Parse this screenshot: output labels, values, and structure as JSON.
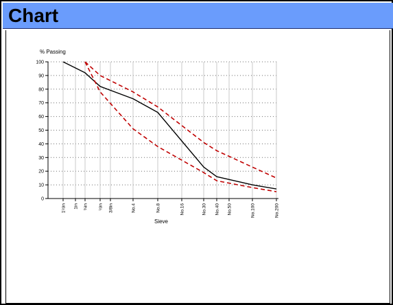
{
  "window": {
    "title": "Chart"
  },
  "colors": {
    "titlebar": "#6a9cfc",
    "gradation": "#000000",
    "limits": "#c00000"
  },
  "chart_data": {
    "type": "line",
    "title": "",
    "ylabel": "% Passing",
    "xlabel": "Sieve",
    "ylim": [
      0,
      100
    ],
    "y_ticks": [
      0,
      10,
      20,
      30,
      40,
      50,
      60,
      70,
      80,
      90,
      100
    ],
    "x_scale": "log (sieve size)",
    "sieves": [
      "1½in",
      "1in",
      "¾in",
      "½in",
      "3/8in",
      "No.4",
      "No.8",
      "No.16",
      "No.30",
      "No.40",
      "No.50",
      "No.100",
      "No.200"
    ],
    "x_ticks": [
      "1½in",
      "1in",
      "¾in",
      "½in",
      "3/8in",
      "No.4",
      "No.8",
      "No.16",
      "No.30",
      "No.40",
      "No.50",
      "No.100",
      "No.200"
    ],
    "grid": true,
    "series": [
      {
        "style": "solid",
        "color": "#000000",
        "x": [
          "1½in",
          "¾in",
          "½in",
          "No.4",
          "No.8",
          "No.30",
          "No.40",
          "No.100",
          "No.200"
        ],
        "values": [
          100,
          92,
          82,
          73,
          63,
          23,
          16,
          10,
          7
        ]
      },
      {
        "style": "dashed",
        "color": "#c00000",
        "x": [
          "¾in",
          "½in",
          "No.4",
          "No.8",
          "No.30",
          "No.40",
          "No.100",
          "No.200"
        ],
        "values": [
          100,
          90,
          78,
          67,
          41,
          35,
          23,
          15
        ]
      },
      {
        "style": "dashed",
        "color": "#c00000",
        "x": [
          "¾in",
          "½in",
          "No.4",
          "No.8",
          "No.30",
          "No.40",
          "No.100",
          "No.200"
        ],
        "values": [
          100,
          78,
          51,
          38,
          19,
          13,
          8,
          5
        ]
      }
    ]
  }
}
